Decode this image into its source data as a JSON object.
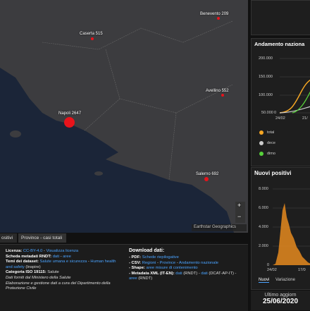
{
  "map": {
    "labels": [
      "Benevento 209",
      "Caserta 515",
      "Avellino 552",
      "Napoli 2647",
      "Salerno 692"
    ],
    "attribution": "Earthstar Geographics",
    "zoom": [
      "+",
      "−"
    ]
  },
  "tabs": [
    "ositivi",
    "Province - casi totali"
  ],
  "info": {
    "left": [
      [
        {
          "text": "Licenza: ",
          "bold": true
        },
        {
          "text": "CC-BY-4.0",
          "link": true
        },
        {
          "text": " - "
        },
        {
          "text": "Visualizza licenza",
          "link": true
        }
      ],
      [
        {
          "text": "Scheda metadati RNDT: ",
          "bold": true
        },
        {
          "text": "dati",
          "link": true
        },
        {
          "text": " - "
        },
        {
          "text": "aree",
          "link": true
        }
      ],
      [
        {
          "text": "Temi dei dataset: ",
          "bold": true
        },
        {
          "text": "Salute umana e sicurezza",
          "link": true
        },
        {
          "text": " - "
        },
        {
          "text": "Human health and safety",
          "link": true
        },
        {
          "text": " (Inspire)"
        }
      ],
      [
        {
          "text": "Categoria ISO 19115: ",
          "bold": true
        },
        {
          "text": "Salute"
        }
      ],
      [
        {
          "text": "Dati forniti dal Ministero della Salute",
          "italic": true
        }
      ],
      [
        {
          "text": "Elaborazione e gestione dati a cura del Dipartimento della Protezione Civile",
          "italic": true
        }
      ]
    ],
    "right_title": "Download dati:",
    "right": [
      [
        {
          "text": "- PDF: ",
          "bold": true
        },
        {
          "text": "Schede riepilogative",
          "link": true
        }
      ],
      [
        {
          "text": "- CSV: ",
          "bold": true
        },
        {
          "text": "Regioni",
          "link": true
        },
        {
          "text": " - "
        },
        {
          "text": "Province",
          "link": true
        },
        {
          "text": " - "
        },
        {
          "text": "Andamento nazionale",
          "link": true
        }
      ],
      [
        {
          "text": "- Shape: ",
          "bold": true
        },
        {
          "text": "aree misure di contenimento",
          "link": true
        }
      ],
      [
        {
          "text": "- Metadata XML (IT-EN): ",
          "bold": true
        },
        {
          "text": "dati",
          "link": true
        },
        {
          "text": " (RNDT) - "
        },
        {
          "text": "dati",
          "link": true
        },
        {
          "text": " (DCAT-AP-IT) - "
        },
        {
          "text": "aree",
          "link": true
        },
        {
          "text": " (RNDT)"
        }
      ]
    ]
  },
  "trend": {
    "title": "Andamento naziona",
    "yticks": [
      "200.000",
      "150.000",
      "100.000",
      "50.000",
      "0"
    ],
    "xticks": [
      "24/02",
      "21/"
    ],
    "legend": [
      "total",
      "dece",
      "dimo"
    ]
  },
  "new_positive": {
    "title": "Nuovi positivi",
    "yticks": [
      "8.000",
      "6.000",
      "4.000",
      "2.000",
      "0"
    ],
    "xticks": [
      "24/02",
      "17/0"
    ],
    "tabs": [
      "Nuovi",
      "Variazione"
    ]
  },
  "update": {
    "label": "Ultimo aggiorn",
    "date": "25/06/2020"
  }
}
